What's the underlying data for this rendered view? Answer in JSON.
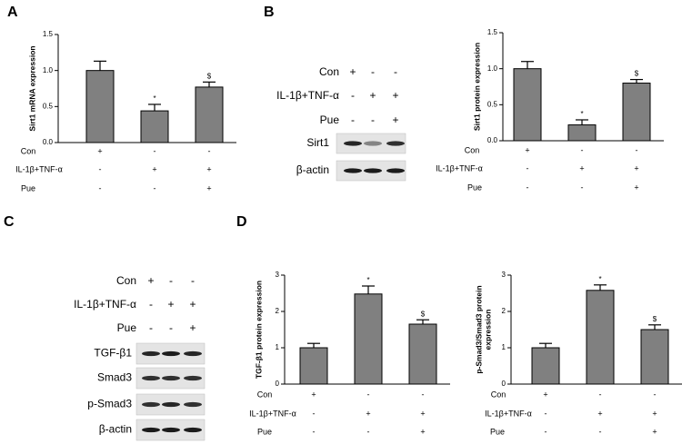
{
  "panel_labels": [
    "A",
    "B",
    "C",
    "D"
  ],
  "chart_data": [
    {
      "type": "bar",
      "ylabel": [
        "Sirt1 mRNA expression"
      ],
      "color": "#808080",
      "values": [
        1.0,
        0.44,
        0.77
      ],
      "errors": [
        0.13,
        0.09,
        0.07
      ],
      "annotations": [
        null,
        "*",
        "$"
      ],
      "ylim": [
        0,
        1.5
      ],
      "yticks": [
        {
          "value": 0,
          "label": "0.0"
        },
        {
          "value": 0.5,
          "label": "0.5"
        },
        {
          "value": 1,
          "label": "1.0"
        },
        {
          "value": 1.5,
          "label": "1.5"
        }
      ],
      "conditions": [
        {
          "name": "Con",
          "signs": [
            "+",
            "-",
            "-"
          ]
        },
        {
          "name": "IL-1β+TNF-α",
          "signs": [
            "-",
            "+",
            "+"
          ]
        },
        {
          "name": "Pue",
          "signs": [
            "-",
            "-",
            "+"
          ]
        }
      ]
    },
    {
      "type": "bar",
      "ylabel": [
        "Sirt1 protein expression"
      ],
      "color": "#808080",
      "values": [
        1.0,
        0.22,
        0.8
      ],
      "errors": [
        0.1,
        0.07,
        0.05
      ],
      "annotations": [
        null,
        "*",
        "$"
      ],
      "ylim": [
        0,
        1.5
      ],
      "yticks": [
        {
          "value": 0,
          "label": "0.0"
        },
        {
          "value": 0.5,
          "label": "0.5"
        },
        {
          "value": 1,
          "label": "1.0"
        },
        {
          "value": 1.5,
          "label": "1.5"
        }
      ],
      "conditions": [
        {
          "name": "Con",
          "signs": [
            "+",
            "-",
            "-"
          ]
        },
        {
          "name": "IL-1β+TNF-α",
          "signs": [
            "-",
            "+",
            "+"
          ]
        },
        {
          "name": "Pue",
          "signs": [
            "-",
            "-",
            "+"
          ]
        }
      ]
    },
    {
      "type": "bar",
      "ylabel": [
        "TGF-β1 protein expression"
      ],
      "color": "#808080",
      "values": [
        1.0,
        2.48,
        1.65
      ],
      "errors": [
        0.12,
        0.22,
        0.12
      ],
      "annotations": [
        null,
        "*",
        "$"
      ],
      "ylim": [
        0,
        3
      ],
      "yticks": [
        0,
        1,
        2,
        3
      ],
      "conditions": [
        {
          "name": "Con",
          "signs": [
            "+",
            "-",
            "-"
          ]
        },
        {
          "name": "IL-1β+TNF-α",
          "signs": [
            "-",
            "+",
            "+"
          ]
        },
        {
          "name": "Pue",
          "signs": [
            "-",
            "-",
            "+"
          ]
        }
      ]
    },
    {
      "type": "bar",
      "ylabel": [
        "p-Smad3/Smad3 protein",
        "expression"
      ],
      "color": "#808080",
      "values": [
        1.0,
        2.58,
        1.5
      ],
      "errors": [
        0.12,
        0.15,
        0.13
      ],
      "annotations": [
        null,
        "*",
        "$"
      ],
      "ylim": [
        0,
        3
      ],
      "yticks": [
        0,
        1,
        2,
        3
      ],
      "conditions": [
        {
          "name": "Con",
          "signs": [
            "+",
            "-",
            "-"
          ]
        },
        {
          "name": "IL-1β+TNF-α",
          "signs": [
            "-",
            "+",
            "+"
          ]
        },
        {
          "name": "Pue",
          "signs": [
            "-",
            "-",
            "+"
          ]
        }
      ]
    }
  ],
  "blots": [
    {
      "conditions": [
        {
          "name": "Con",
          "signs": [
            "+",
            "-",
            "-"
          ]
        },
        {
          "name": "IL-1β+TNF-α",
          "signs": [
            "-",
            "+",
            "+"
          ]
        },
        {
          "name": "Pue",
          "signs": [
            "-",
            "-",
            "+"
          ]
        }
      ],
      "bands": [
        "Sirt1",
        "β-actin"
      ]
    },
    {
      "conditions": [
        {
          "name": "Con",
          "signs": [
            "+",
            "-",
            "-"
          ]
        },
        {
          "name": "IL-1β+TNF-α",
          "signs": [
            "-",
            "+",
            "+"
          ]
        },
        {
          "name": "Pue",
          "signs": [
            "-",
            "-",
            "+"
          ]
        }
      ],
      "bands": [
        "TGF-β1",
        "Smad3",
        "p-Smad3",
        "β-actin"
      ]
    }
  ]
}
